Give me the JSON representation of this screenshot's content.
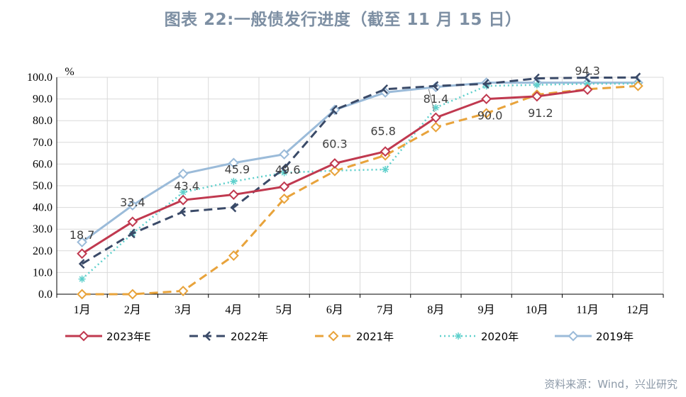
{
  "chart_data": {
    "type": "line",
    "title": "图表 22:一般债发行进度（截至 11 月 15 日）",
    "ylabel": "%",
    "ylim": [
      0,
      100
    ],
    "yticks": [
      "0.0",
      "10.0",
      "20.0",
      "30.0",
      "40.0",
      "50.0",
      "60.0",
      "70.0",
      "80.0",
      "90.0",
      "100.0"
    ],
    "categories": [
      "1月",
      "2月",
      "3月",
      "4月",
      "5月",
      "6月",
      "7月",
      "8月",
      "9月",
      "10月",
      "11月",
      "12月"
    ],
    "series": [
      {
        "name": "2023年E",
        "color": "#c0394f",
        "dash": "solid",
        "marker": "diamond",
        "values": [
          18.7,
          33.4,
          43.4,
          45.9,
          49.6,
          60.3,
          65.8,
          81.4,
          90.0,
          91.2,
          94.3,
          null
        ]
      },
      {
        "name": "2022年",
        "color": "#3a4a68",
        "dash": "dash",
        "marker": "arrow",
        "values": [
          14.0,
          28.0,
          38.0,
          40.0,
          58.0,
          85.0,
          94.5,
          96.0,
          97.0,
          99.5,
          99.8,
          99.9
        ]
      },
      {
        "name": "2021年",
        "color": "#e8a33b",
        "dash": "dash",
        "marker": "diamond",
        "values": [
          0.0,
          0.0,
          1.5,
          17.8,
          44.0,
          56.8,
          64.0,
          77.0,
          83.4,
          92.0,
          94.5,
          96.0
        ]
      },
      {
        "name": "2020年",
        "color": "#5fd0cc",
        "dash": "dot",
        "marker": "asterisk",
        "values": [
          7.0,
          28.0,
          47.0,
          52.0,
          56.0,
          57.0,
          57.5,
          86.0,
          96.0,
          96.5,
          97.0,
          97.0
        ]
      },
      {
        "name": "2019年",
        "color": "#9bbbd9",
        "dash": "solid",
        "marker": "diamond",
        "values": [
          24.0,
          41.0,
          55.5,
          60.5,
          64.5,
          85.0,
          93.0,
          95.5,
          97.5,
          97.5,
          97.5,
          97.5
        ]
      }
    ],
    "data_labels": [
      {
        "series": 0,
        "index": 0,
        "text": "18.7"
      },
      {
        "series": 0,
        "index": 1,
        "text": "33.4"
      },
      {
        "series": 0,
        "index": 2,
        "text": "43.4"
      },
      {
        "series": 0,
        "index": 3,
        "text": "45.9"
      },
      {
        "series": 0,
        "index": 4,
        "text": "49.6"
      },
      {
        "series": 0,
        "index": 5,
        "text": "60.3"
      },
      {
        "series": 0,
        "index": 6,
        "text": "65.8"
      },
      {
        "series": 0,
        "index": 7,
        "text": "81.4"
      },
      {
        "series": 0,
        "index": 8,
        "text": "90.0"
      },
      {
        "series": 0,
        "index": 9,
        "text": "91.2"
      },
      {
        "series": 0,
        "index": 10,
        "text": "94.3"
      }
    ],
    "legend_position": "bottom",
    "source": "资料来源：Wind，兴业研究"
  }
}
